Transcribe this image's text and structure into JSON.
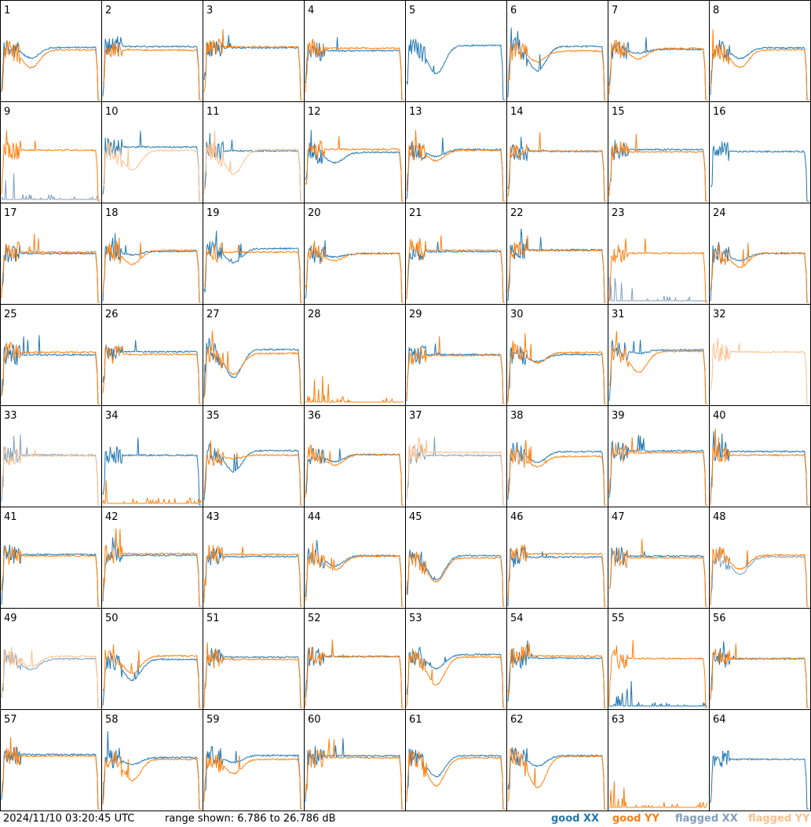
{
  "chart_data": {
    "type": "line",
    "title": "",
    "xlabel": "",
    "ylabel": "",
    "tiles": [
      "1",
      "2",
      "3",
      "4",
      "5",
      "6",
      "7",
      "8",
      "9",
      "10",
      "11",
      "12",
      "13",
      "14",
      "15",
      "16",
      "17",
      "18",
      "19",
      "20",
      "21",
      "22",
      "23",
      "24",
      "25",
      "26",
      "27",
      "28",
      "29",
      "30",
      "31",
      "32",
      "33",
      "34",
      "35",
      "36",
      "37",
      "38",
      "39",
      "40",
      "41",
      "42",
      "43",
      "44",
      "45",
      "46",
      "47",
      "48",
      "49",
      "50",
      "51",
      "52",
      "53",
      "54",
      "55",
      "56",
      "57",
      "58",
      "59",
      "60",
      "61",
      "62",
      "63",
      "64"
    ],
    "ylim_db": [
      6.786,
      26.786
    ],
    "grid": false,
    "legend": "bottom-right",
    "series": [
      {
        "name": "good XX",
        "color": "#1f77b4"
      },
      {
        "name": "good YY",
        "color": "#ff7f0e"
      },
      {
        "name": "flagged XX",
        "color": "#7f9fbf"
      },
      {
        "name": "flagged YY",
        "color": "#ffbf8a"
      }
    ]
  },
  "footer": {
    "timestamp": "2024/11/10 03:20:45 UTC",
    "range": "range shown: 6.786 to 26.786 dB"
  },
  "legend": {
    "good_xx": "good XX",
    "good_yy": "good YY",
    "flagged_xx": "flagged XX",
    "flagged_yy": "flagged YY"
  }
}
